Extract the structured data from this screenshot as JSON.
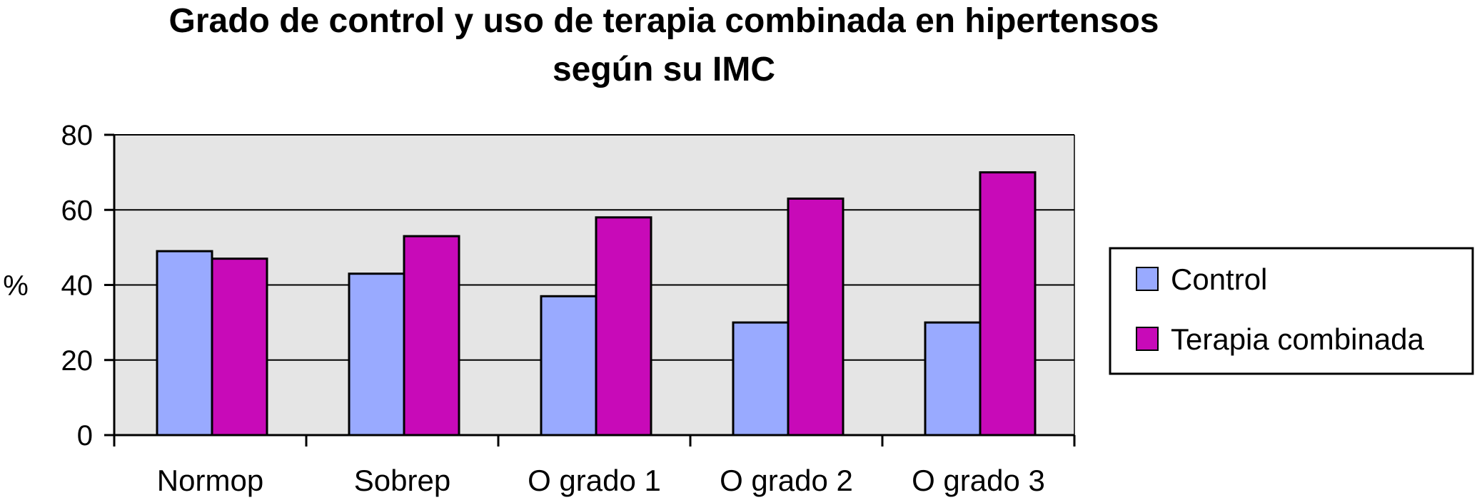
{
  "chart_data": {
    "type": "bar",
    "title": [
      "Grado de control y uso de terapia combinada en hipertensos",
      "según su IMC"
    ],
    "ylabel": "%",
    "ylim": [
      0,
      80
    ],
    "yticks": [
      0,
      20,
      40,
      60,
      80
    ],
    "grid": true,
    "legend_position": "right",
    "categories": [
      "Normop",
      "Sobrep",
      "O grado 1",
      "O grado 2",
      "O grado 3"
    ],
    "series": [
      {
        "name": "Control",
        "color": "#99aaff",
        "values": [
          49,
          43,
          37,
          30,
          30
        ]
      },
      {
        "name": "Terapia combinada",
        "color": "#c80ab8",
        "values": [
          47,
          53,
          58,
          63,
          70
        ]
      }
    ],
    "plot_background": "#e5e5e5"
  }
}
